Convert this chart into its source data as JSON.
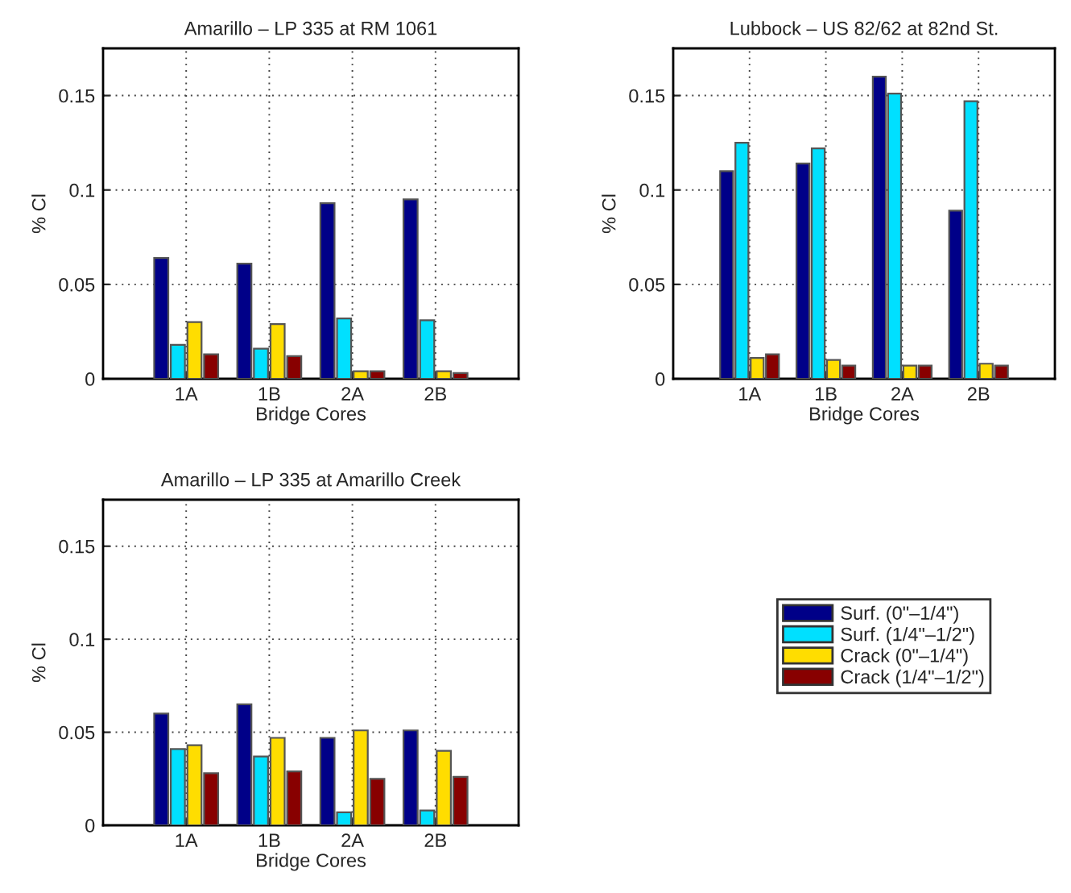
{
  "chart_data": [
    {
      "type": "bar",
      "title": "Amarillo – LP 335 at RM 1061",
      "xlabel": "Bridge Cores",
      "ylabel": "% Cl",
      "categories": [
        "1A",
        "1B",
        "2A",
        "2B"
      ],
      "ylim": [
        0,
        0.175
      ],
      "yticks": [
        0,
        0.05,
        0.1,
        0.15
      ],
      "grid": true,
      "series": [
        {
          "color": "#000088",
          "values": [
            0.064,
            0.061,
            0.093,
            0.095
          ]
        },
        {
          "color": "#00e0ff",
          "values": [
            0.018,
            0.016,
            0.032,
            0.031
          ]
        },
        {
          "color": "#ffdd00",
          "values": [
            0.03,
            0.029,
            0.004,
            0.004
          ]
        },
        {
          "color": "#880000",
          "values": [
            0.013,
            0.012,
            0.004,
            0.003
          ]
        }
      ]
    },
    {
      "type": "bar",
      "title": "Lubbock – US 82/62 at 82nd St.",
      "xlabel": "Bridge Cores",
      "ylabel": "% Cl",
      "categories": [
        "1A",
        "1B",
        "2A",
        "2B"
      ],
      "ylim": [
        0,
        0.175
      ],
      "yticks": [
        0,
        0.05,
        0.1,
        0.15
      ],
      "grid": true,
      "series": [
        {
          "color": "#000088",
          "values": [
            0.11,
            0.114,
            0.16,
            0.089
          ]
        },
        {
          "color": "#00e0ff",
          "values": [
            0.125,
            0.122,
            0.151,
            0.147
          ]
        },
        {
          "color": "#ffdd00",
          "values": [
            0.011,
            0.01,
            0.007,
            0.008
          ]
        },
        {
          "color": "#880000",
          "values": [
            0.013,
            0.007,
            0.007,
            0.007
          ]
        }
      ]
    },
    {
      "type": "bar",
      "title": "Amarillo – LP 335 at Amarillo Creek",
      "xlabel": "Bridge Cores",
      "ylabel": "% Cl",
      "categories": [
        "1A",
        "1B",
        "2A",
        "2B"
      ],
      "ylim": [
        0,
        0.175
      ],
      "yticks": [
        0,
        0.05,
        0.1,
        0.15
      ],
      "grid": true,
      "legend": "right",
      "series": [
        {
          "name": "Surf. (0\"–1/4\")",
          "color": "#000088",
          "values": [
            0.06,
            0.065,
            0.047,
            0.051
          ]
        },
        {
          "name": "Surf. (1/4\"–1/2\")",
          "color": "#00e0ff",
          "values": [
            0.041,
            0.037,
            0.007,
            0.008
          ]
        },
        {
          "name": "Crack (0\"–1/4\")",
          "color": "#ffdd00",
          "values": [
            0.043,
            0.047,
            0.051,
            0.04
          ]
        },
        {
          "name": "Crack (1/4\"–1/2\")",
          "color": "#880000",
          "values": [
            0.028,
            0.029,
            0.025,
            0.026
          ]
        }
      ]
    }
  ]
}
